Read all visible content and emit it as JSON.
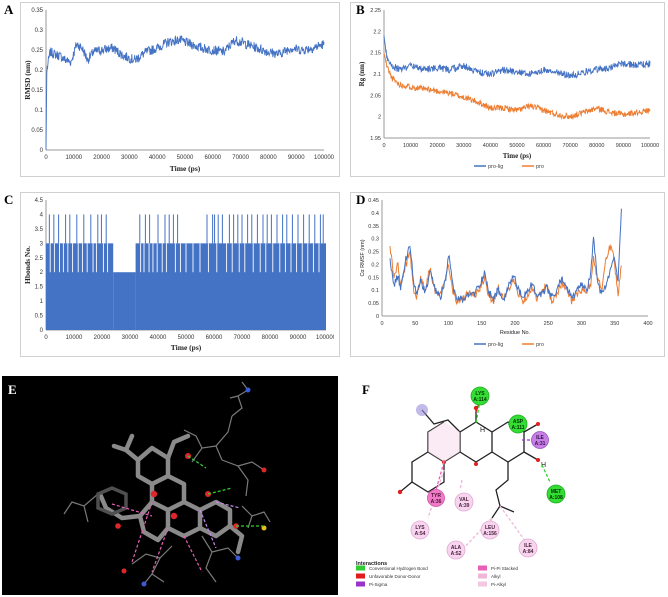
{
  "panel_labels": {
    "A": "A",
    "B": "B",
    "C": "C",
    "D": "D",
    "E": "E",
    "F": "F"
  },
  "chart_data": [
    {
      "id": "A",
      "type": "line",
      "title": "",
      "xlabel": "Time (ps)",
      "ylabel": "RMSD (nm)",
      "xlim": [
        0,
        100000
      ],
      "ylim": [
        0,
        0.35
      ],
      "xticks": [
        "0",
        "10000",
        "20000",
        "30000",
        "40000",
        "50000",
        "60000",
        "70000",
        "80000",
        "90000",
        "100000"
      ],
      "yticks": [
        "0",
        "0.05",
        "0.1",
        "0.15",
        "0.2",
        "0.25",
        "0.3",
        "0.35"
      ],
      "series": [
        {
          "name": "RMSD",
          "color": "#4472c4",
          "x": [
            0,
            300,
            1500,
            3000,
            5000,
            7000,
            9000,
            11000,
            13000,
            15000,
            17000,
            20000,
            24000,
            28000,
            32000,
            36000,
            40000,
            44000,
            48000,
            52000,
            56000,
            60000,
            64000,
            68000,
            72000,
            76000,
            80000,
            84000,
            88000,
            92000,
            96000,
            100000
          ],
          "y": [
            0.0,
            0.2,
            0.245,
            0.24,
            0.235,
            0.225,
            0.22,
            0.265,
            0.255,
            0.225,
            0.245,
            0.25,
            0.255,
            0.235,
            0.225,
            0.245,
            0.255,
            0.27,
            0.275,
            0.265,
            0.255,
            0.25,
            0.245,
            0.275,
            0.265,
            0.255,
            0.245,
            0.24,
            0.255,
            0.25,
            0.255,
            0.265
          ],
          "noise": 0.012
        }
      ]
    },
    {
      "id": "B",
      "type": "line",
      "title": "",
      "xlabel": "Time (ps)",
      "ylabel": "Rg (nm)",
      "xlim": [
        0,
        100000
      ],
      "ylim": [
        1.95,
        2.25
      ],
      "xticks": [
        "0",
        "10000",
        "20000",
        "30000",
        "40000",
        "50000",
        "60000",
        "70000",
        "80000",
        "90000",
        "100000"
      ],
      "yticks": [
        "1.95",
        "2",
        "2.05",
        "2.1",
        "2.15",
        "2.2",
        "2.25"
      ],
      "legend": [
        "pro-lig",
        "pro"
      ],
      "legend_position": "bottom",
      "series": [
        {
          "name": "pro-lig",
          "color": "#4472c4",
          "x": [
            0,
            1000,
            3000,
            6000,
            10000,
            15000,
            20000,
            25000,
            30000,
            35000,
            40000,
            45000,
            50000,
            55000,
            60000,
            65000,
            70000,
            75000,
            80000,
            85000,
            90000,
            95000,
            100000
          ],
          "y": [
            2.19,
            2.14,
            2.12,
            2.11,
            2.12,
            2.11,
            2.115,
            2.11,
            2.12,
            2.105,
            2.1,
            2.11,
            2.105,
            2.1,
            2.11,
            2.105,
            2.095,
            2.105,
            2.11,
            2.115,
            2.125,
            2.12,
            2.125
          ],
          "noise": 0.008
        },
        {
          "name": "pro",
          "color": "#ed7d31",
          "x": [
            0,
            1000,
            3000,
            6000,
            10000,
            15000,
            20000,
            25000,
            30000,
            35000,
            40000,
            45000,
            50000,
            55000,
            60000,
            65000,
            70000,
            75000,
            80000,
            85000,
            90000,
            95000,
            100000
          ],
          "y": [
            2.15,
            2.12,
            2.09,
            2.075,
            2.07,
            2.065,
            2.06,
            2.055,
            2.045,
            2.035,
            2.02,
            2.02,
            2.015,
            2.025,
            2.015,
            2.005,
            2.0,
            2.01,
            2.02,
            2.01,
            2.005,
            2.01,
            2.015
          ],
          "noise": 0.007
        }
      ]
    },
    {
      "id": "C",
      "type": "bar",
      "title": "",
      "xlabel": "Time (ps)",
      "ylabel": "Hbonds No.",
      "xlim": [
        0,
        100000
      ],
      "ylim": [
        0,
        4.5
      ],
      "xticks": [
        "0",
        "10000",
        "20000",
        "30000",
        "40000",
        "50000",
        "60000",
        "70000",
        "80000",
        "90000",
        "100000"
      ],
      "yticks": [
        "0",
        "0.5",
        "1",
        "1.5",
        "2",
        "2.5",
        "3",
        "3.5",
        "4",
        "4.5"
      ],
      "baseline_segments": [
        {
          "from": 0,
          "to": 24000,
          "value": 3
        },
        {
          "from": 24000,
          "to": 32000,
          "value": 2
        },
        {
          "from": 32000,
          "to": 100000,
          "value": 3
        }
      ],
      "spikes_to_4": [
        1200,
        2800,
        4500,
        7000,
        8500,
        11000,
        13500,
        16000,
        18500,
        19800,
        21500,
        33500,
        35500,
        37000,
        40000,
        42500,
        44000,
        45500,
        47000,
        57500,
        59500,
        60200,
        61500,
        63000,
        65500,
        67000,
        68500,
        70000,
        72000,
        73500,
        75500,
        77500,
        79000,
        80500,
        82500,
        84500,
        86000,
        88000,
        90000,
        92000,
        94000,
        96000,
        98000,
        99000
      ],
      "dips_to_2": [
        1500,
        3000,
        4800,
        6200,
        7800,
        9500,
        11500,
        13000,
        14700,
        16800,
        18000,
        20500,
        22000,
        33800,
        35000,
        36800,
        38200,
        39700,
        41500,
        43000,
        46200,
        48000,
        50000,
        52500,
        55000,
        58000,
        61000,
        64500,
        66500,
        69000,
        71000,
        74000,
        76500,
        78500,
        81000,
        83500,
        85500,
        87500,
        89500,
        91500,
        93500,
        95500,
        97500
      ]
    },
    {
      "id": "D",
      "type": "line",
      "title": "",
      "xlabel": "Residue No.",
      "ylabel": "Cα RMSF (nm)",
      "xlim": [
        0,
        400
      ],
      "ylim": [
        0,
        0.45
      ],
      "xticks": [
        "0",
        "50",
        "100",
        "150",
        "200",
        "250",
        "300",
        "350",
        "400"
      ],
      "yticks": [
        "0",
        "0.05",
        "0.1",
        "0.15",
        "0.2",
        "0.25",
        "0.3",
        "0.35",
        "0.4",
        "0.45"
      ],
      "legend": [
        "pro-lig",
        "pro"
      ],
      "legend_position": "bottom",
      "series": [
        {
          "name": "pro-lig",
          "color": "#4472c4",
          "x": [
            12,
            18,
            24,
            28,
            34,
            42,
            48,
            52,
            58,
            65,
            72,
            80,
            88,
            95,
            100,
            106,
            112,
            120,
            130,
            140,
            148,
            155,
            160,
            168,
            175,
            182,
            190,
            198,
            205,
            212,
            218,
            225,
            232,
            240,
            248,
            255,
            262,
            270,
            278,
            285,
            292,
            300,
            308,
            314,
            318,
            324,
            330,
            338,
            345,
            350,
            355,
            360
          ],
          "y": [
            0.22,
            0.12,
            0.16,
            0.1,
            0.2,
            0.28,
            0.12,
            0.08,
            0.14,
            0.09,
            0.17,
            0.1,
            0.07,
            0.13,
            0.24,
            0.12,
            0.07,
            0.06,
            0.08,
            0.09,
            0.13,
            0.17,
            0.09,
            0.07,
            0.1,
            0.06,
            0.11,
            0.16,
            0.1,
            0.07,
            0.09,
            0.13,
            0.08,
            0.08,
            0.11,
            0.07,
            0.09,
            0.15,
            0.11,
            0.07,
            0.09,
            0.12,
            0.1,
            0.16,
            0.32,
            0.12,
            0.09,
            0.12,
            0.2,
            0.22,
            0.13,
            0.42
          ]
        },
        {
          "name": "pro",
          "color": "#ed7d31",
          "x": [
            12,
            18,
            24,
            28,
            34,
            42,
            48,
            52,
            58,
            65,
            72,
            80,
            88,
            95,
            100,
            106,
            112,
            120,
            130,
            140,
            148,
            155,
            160,
            168,
            175,
            182,
            190,
            198,
            205,
            212,
            218,
            225,
            232,
            240,
            248,
            255,
            262,
            270,
            278,
            285,
            292,
            300,
            308,
            314,
            318,
            324,
            330,
            338,
            345,
            350,
            355,
            360
          ],
          "y": [
            0.27,
            0.15,
            0.2,
            0.12,
            0.18,
            0.25,
            0.1,
            0.07,
            0.15,
            0.1,
            0.19,
            0.09,
            0.08,
            0.15,
            0.21,
            0.1,
            0.06,
            0.07,
            0.09,
            0.08,
            0.11,
            0.15,
            0.08,
            0.06,
            0.11,
            0.07,
            0.1,
            0.14,
            0.09,
            0.06,
            0.08,
            0.11,
            0.07,
            0.09,
            0.12,
            0.06,
            0.08,
            0.13,
            0.1,
            0.06,
            0.08,
            0.1,
            0.09,
            0.13,
            0.22,
            0.15,
            0.1,
            0.23,
            0.28,
            0.2,
            0.08,
            0.21
          ]
        }
      ]
    }
  ],
  "panel_f": {
    "residues": [
      {
        "id": "lys114",
        "line1": "LYS",
        "line2": "A:114",
        "kind": "hbond"
      },
      {
        "id": "asp111",
        "line1": "ASP",
        "line2": "A:111",
        "kind": "hbond"
      },
      {
        "id": "ile31",
        "line1": "ILE",
        "line2": "A:31",
        "kind": "pisigma"
      },
      {
        "id": "met108",
        "line1": "MET",
        "line2": "A:108",
        "kind": "hbond"
      },
      {
        "id": "val39",
        "line1": "VAL",
        "line2": "A:39",
        "kind": "alkyl"
      },
      {
        "id": "tyr36",
        "line1": "TYR",
        "line2": "A:36",
        "kind": "pipi"
      },
      {
        "id": "lys54",
        "line1": "LYS",
        "line2": "A:54",
        "kind": "alkyl"
      },
      {
        "id": "ala52",
        "line1": "ALA",
        "line2": "A:52",
        "kind": "alkyl"
      },
      {
        "id": "leu156",
        "line1": "LEU",
        "line2": "A:156",
        "kind": "alkyl"
      },
      {
        "id": "ile84",
        "line1": "ILE",
        "line2": "A:84",
        "kind": "alkyl"
      }
    ],
    "interactions_title": "Interactions",
    "legend": [
      {
        "label": "Conventional Hydrogen Bond",
        "color": "#33cc33"
      },
      {
        "label": "Unfavorable Donor-Donor",
        "color": "#e31a1c"
      },
      {
        "label": "Pi-Sigma",
        "color": "#9933cc"
      },
      {
        "label": "Pi-Pi Stacked",
        "color": "#e75fb7"
      },
      {
        "label": "Alkyl",
        "color": "#f0b6d8"
      },
      {
        "label": "Pi-Alkyl",
        "color": "#f3c6e2"
      }
    ],
    "atom_labels": {
      "h_top": "H",
      "h_right": "H"
    }
  }
}
